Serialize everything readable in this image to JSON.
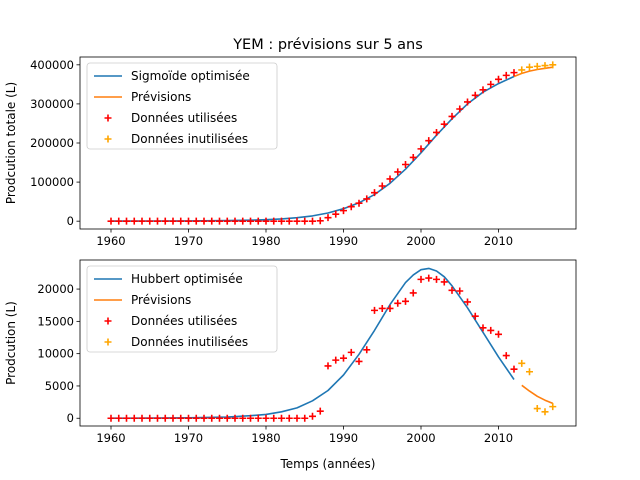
{
  "figure": {
    "title": "YEM : prévisions sur 5 ans"
  },
  "colors": {
    "fit": "#1f77b4",
    "forecast": "#ff7f0e",
    "used": "#ff0000",
    "unused": "#ffa500"
  },
  "chart_data": [
    {
      "type": "line",
      "name": "top",
      "ylabel": "Prodcution totale (L)",
      "xlabel": "",
      "xlim": [
        1956,
        2020
      ],
      "ylim": [
        -20000,
        420000
      ],
      "xticks": [
        1960,
        1970,
        1980,
        1990,
        2000,
        2010
      ],
      "xtick_labels": [
        "1960",
        "1970",
        "1980",
        "1990",
        "2000",
        "2010"
      ],
      "yticks": [
        0,
        100000,
        200000,
        300000,
        400000
      ],
      "ytick_labels": [
        "0",
        "100000",
        "200000",
        "300000",
        "400000"
      ],
      "legend": {
        "placement": "upper-left",
        "entries": [
          {
            "label": "Sigmoïde optimisée",
            "kind": "line",
            "color": "#1f77b4"
          },
          {
            "label": "Prévisions",
            "kind": "line",
            "color": "#ff7f0e"
          },
          {
            "label": "Données utilisées",
            "kind": "marker",
            "color": "#ff0000"
          },
          {
            "label": "Données inutilisées",
            "kind": "marker",
            "color": "#ffa500"
          }
        ]
      },
      "series": [
        {
          "name": "Sigmoïde optimisée",
          "kind": "line",
          "color": "#1f77b4",
          "x": [
            1960,
            1965,
            1970,
            1975,
            1978,
            1980,
            1982,
            1984,
            1986,
            1988,
            1990,
            1992,
            1994,
            1996,
            1998,
            2000,
            2002,
            2004,
            2006,
            2008,
            2010,
            2012
          ],
          "y": [
            200,
            350,
            700,
            1400,
            2500,
            3800,
            5800,
            9000,
            13500,
            21000,
            32000,
            47000,
            68000,
            97000,
            133000,
            175000,
            220000,
            262000,
            300000,
            330000,
            352000,
            370000
          ]
        },
        {
          "name": "Prévisions",
          "kind": "line",
          "color": "#ff7f0e",
          "x": [
            2012,
            2013,
            2014,
            2015,
            2016,
            2017
          ],
          "y": [
            370000,
            378000,
            384000,
            388000,
            391000,
            394000
          ]
        },
        {
          "name": "Données utilisées",
          "kind": "marker",
          "color": "#ff0000",
          "x": [
            1960,
            1961,
            1962,
            1963,
            1964,
            1965,
            1966,
            1967,
            1968,
            1969,
            1970,
            1971,
            1972,
            1973,
            1974,
            1975,
            1976,
            1977,
            1978,
            1979,
            1980,
            1981,
            1982,
            1983,
            1984,
            1985,
            1986,
            1987,
            1988,
            1989,
            1990,
            1991,
            1992,
            1993,
            1994,
            1995,
            1996,
            1997,
            1998,
            1999,
            2000,
            2001,
            2002,
            2003,
            2004,
            2005,
            2006,
            2007,
            2008,
            2009,
            2010,
            2011,
            2012
          ],
          "y": [
            0,
            0,
            0,
            0,
            0,
            0,
            0,
            0,
            0,
            0,
            0,
            0,
            0,
            0,
            0,
            0,
            0,
            0,
            0,
            0,
            0,
            0,
            0,
            0,
            0,
            0,
            0,
            1000,
            9000,
            18000,
            27000,
            37000,
            46000,
            57000,
            73000,
            90000,
            108000,
            126000,
            145000,
            163000,
            185000,
            206000,
            227000,
            248000,
            268000,
            287000,
            305000,
            322000,
            336000,
            350000,
            363000,
            373000,
            380000
          ]
        },
        {
          "name": "Données inutilisées",
          "kind": "marker",
          "color": "#ffa500",
          "x": [
            2013,
            2014,
            2015,
            2016,
            2017
          ],
          "y": [
            387000,
            394000,
            396000,
            398000,
            400000
          ]
        }
      ]
    },
    {
      "type": "line",
      "name": "bottom",
      "ylabel": "Prodcution (L)",
      "xlabel": "Temps (années)",
      "xlim": [
        1956,
        2020
      ],
      "ylim": [
        -1200,
        24500
      ],
      "xticks": [
        1960,
        1970,
        1980,
        1990,
        2000,
        2010
      ],
      "xtick_labels": [
        "1960",
        "1970",
        "1980",
        "1990",
        "2000",
        "2010"
      ],
      "yticks": [
        0,
        5000,
        10000,
        15000,
        20000
      ],
      "ytick_labels": [
        "0",
        "5000",
        "10000",
        "15000",
        "20000"
      ],
      "legend": {
        "placement": "upper-left",
        "entries": [
          {
            "label": "Hubbert optimisée",
            "kind": "line",
            "color": "#1f77b4"
          },
          {
            "label": "Prévisions",
            "kind": "line",
            "color": "#ff7f0e"
          },
          {
            "label": "Données utilisées",
            "kind": "marker",
            "color": "#ff0000"
          },
          {
            "label": "Données inutilisées",
            "kind": "marker",
            "color": "#ffa500"
          }
        ]
      },
      "series": [
        {
          "name": "Hubbert optimisée",
          "kind": "line",
          "color": "#1f77b4",
          "x": [
            1960,
            1965,
            1970,
            1975,
            1978,
            1980,
            1982,
            1984,
            1986,
            1988,
            1990,
            1992,
            1994,
            1996,
            1998,
            1999,
            2000,
            2001,
            2002,
            2003,
            2004,
            2006,
            2008,
            2010,
            2012
          ],
          "y": [
            10,
            30,
            70,
            200,
            400,
            600,
            1000,
            1600,
            2700,
            4300,
            6700,
            9900,
            13600,
            17600,
            21000,
            22200,
            23000,
            23200,
            22800,
            21900,
            20500,
            17100,
            13300,
            9500,
            6000
          ]
        },
        {
          "name": "Prévisions",
          "kind": "line",
          "color": "#ff7f0e",
          "x": [
            2013,
            2014,
            2015,
            2016,
            2017
          ],
          "y": [
            5100,
            4200,
            3400,
            2800,
            2300
          ]
        },
        {
          "name": "Données utilisées",
          "kind": "marker",
          "color": "#ff0000",
          "x": [
            1960,
            1961,
            1962,
            1963,
            1964,
            1965,
            1966,
            1967,
            1968,
            1969,
            1970,
            1971,
            1972,
            1973,
            1974,
            1975,
            1976,
            1977,
            1978,
            1979,
            1980,
            1981,
            1982,
            1983,
            1984,
            1985,
            1986,
            1987,
            1988,
            1989,
            1990,
            1991,
            1992,
            1993,
            1994,
            1995,
            1996,
            1997,
            1998,
            1999,
            2000,
            2001,
            2002,
            2003,
            2004,
            2005,
            2006,
            2007,
            2008,
            2009,
            2010,
            2011,
            2012
          ],
          "y": [
            0,
            0,
            0,
            0,
            0,
            0,
            0,
            0,
            0,
            0,
            0,
            0,
            0,
            0,
            0,
            0,
            0,
            0,
            0,
            0,
            0,
            0,
            0,
            0,
            0,
            0,
            300,
            1100,
            8100,
            9000,
            9300,
            10200,
            8800,
            10600,
            16700,
            17000,
            17000,
            17800,
            18100,
            19400,
            21500,
            21700,
            21500,
            21100,
            19800,
            19700,
            18000,
            15800,
            14000,
            13600,
            13000,
            9700,
            7600
          ]
        },
        {
          "name": "Données inutilisées",
          "kind": "marker",
          "color": "#ffa500",
          "x": [
            2013,
            2014,
            2015,
            2016,
            2017
          ],
          "y": [
            8500,
            7200,
            1500,
            1000,
            1800
          ]
        }
      ]
    }
  ]
}
